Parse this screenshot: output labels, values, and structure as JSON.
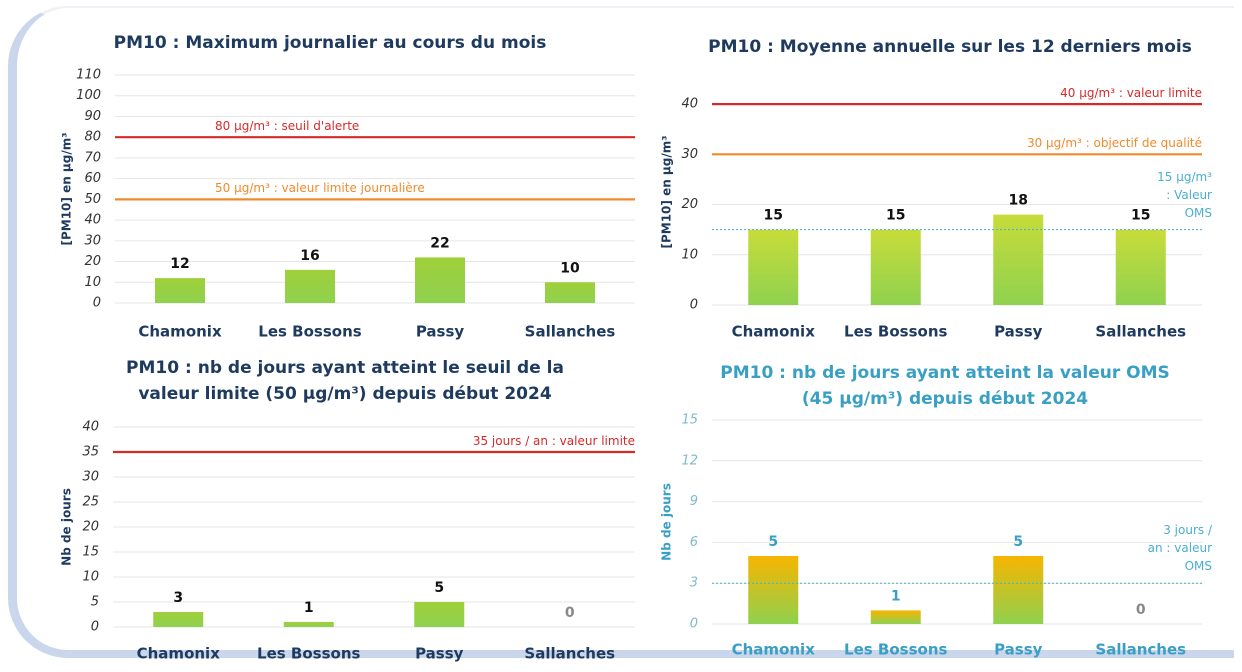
{
  "chart_data": [
    {
      "type": "bar",
      "title": "PM10 : Maximum journalier au cours du mois",
      "y_label": "[PM10] en µg/m³",
      "categories": [
        "Chamonix",
        "Les Bossons",
        "Passy",
        "Sallanches"
      ],
      "values": [
        12,
        16,
        22,
        10
      ],
      "color": "#9fd03a",
      "ylim": [
        0,
        110
      ],
      "yticks": [
        0,
        10,
        20,
        30,
        40,
        50,
        60,
        70,
        80,
        90,
        100,
        110
      ],
      "grid": true,
      "ref_lines": [
        {
          "value": 80,
          "label": "80 µg/m³ : seuil d'alerte",
          "color": "#d42a2a",
          "style": "solid",
          "label_pos": "left"
        },
        {
          "value": 50,
          "label": "50 µg/m³ : valeur limite journalière",
          "color": "#f08a2c",
          "style": "solid",
          "label_pos": "left"
        }
      ]
    },
    {
      "type": "bar",
      "title": "PM10 : Moyenne annuelle sur les 12 derniers mois",
      "y_label": "[PM10] en µg/m³",
      "categories": [
        "Chamonix",
        "Les Bossons",
        "Passy",
        "Sallanches"
      ],
      "values": [
        15,
        15,
        18,
        15
      ],
      "color": "#c8dc3a",
      "ylim": [
        0,
        45
      ],
      "yticks": [
        0,
        10,
        20,
        30,
        40
      ],
      "grid": true,
      "ref_lines": [
        {
          "value": 40,
          "label": "40 µg/m³ : valeur limite",
          "color": "#d42a2a",
          "style": "solid",
          "label_pos": "right"
        },
        {
          "value": 30,
          "label": "30 µg/m³ : objectif de qualité",
          "color": "#f08a2c",
          "style": "solid",
          "label_pos": "right"
        },
        {
          "value": 15,
          "label": "15 µg/m³\n: Valeur\nOMS",
          "color": "#4aaed0",
          "style": "dotted",
          "label_pos": "outside"
        }
      ]
    },
    {
      "type": "bar",
      "title": "PM10 : nb de jours ayant atteint le seuil de la\nvaleur limite (50 µg/m³) depuis début 2024",
      "y_label": "Nb de jours",
      "categories": [
        "Chamonix",
        "Les Bossons",
        "Passy",
        "Sallanches"
      ],
      "values": [
        3,
        1,
        5,
        0
      ],
      "color": "#9fd03a",
      "ylim": [
        0,
        40
      ],
      "yticks": [
        0,
        5,
        10,
        15,
        20,
        25,
        30,
        35,
        40
      ],
      "grid": true,
      "ref_lines": [
        {
          "value": 35,
          "label": "35 jours / an  : valeur limite",
          "color": "#d42a2a",
          "style": "solid",
          "label_pos": "right"
        }
      ]
    },
    {
      "type": "bar",
      "title": "PM10 : nb de jours ayant atteint la valeur OMS\n(45 µg/m³) depuis début 2024",
      "y_label": "Nb de jours",
      "categories": [
        "Chamonix",
        "Les Bossons",
        "Passy",
        "Sallanches"
      ],
      "values": [
        5,
        1,
        5,
        0
      ],
      "color": "#f7b500",
      "ylim": [
        0,
        15
      ],
      "yticks": [
        0,
        3,
        6,
        9,
        12,
        15
      ],
      "grid": true,
      "ref_lines": [
        {
          "value": 3,
          "label": "3 jours /\nan : valeur\nOMS",
          "color": "#4aaed0",
          "style": "dotted",
          "label_pos": "outside"
        }
      ]
    }
  ]
}
